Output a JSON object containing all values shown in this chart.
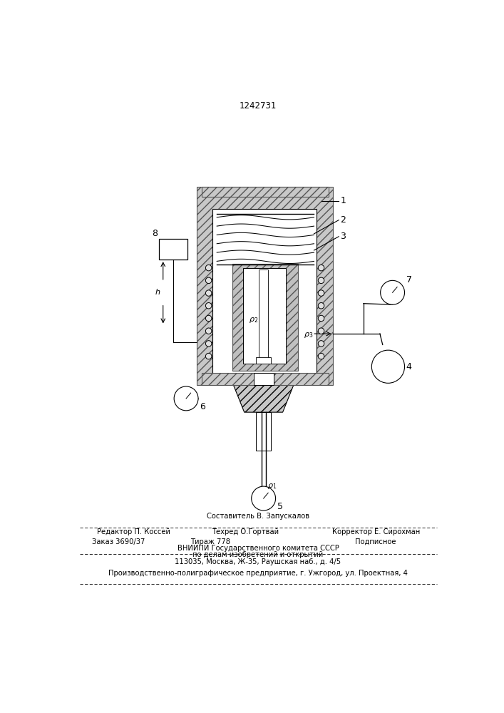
{
  "patent_number": "1242731",
  "bg_color": "#ffffff",
  "line_color": "#000000",
  "footer_line1_above": "Составитель В. Запускалов",
  "footer_line1_left": "Редактор П. Коссей",
  "footer_line1_center": "Техред О.Гортвай",
  "footer_line1_right": "Корректор Е. Сирохман",
  "footer_line2_left": "Заказ 3690/37",
  "footer_line2_center": "Тираж 778",
  "footer_line2_right": "Подписное",
  "footer_line3": "ВНИИПИ Государственного комитета СССР",
  "footer_line4": "по делам изобретений и открытий",
  "footer_line5": "113035, Москва, Ж-35, Раушская наб., д. 4/5",
  "footer_line6": "Производственно-полиграфическое предприятие, г. Ужгород, ул. Проектная, 4"
}
